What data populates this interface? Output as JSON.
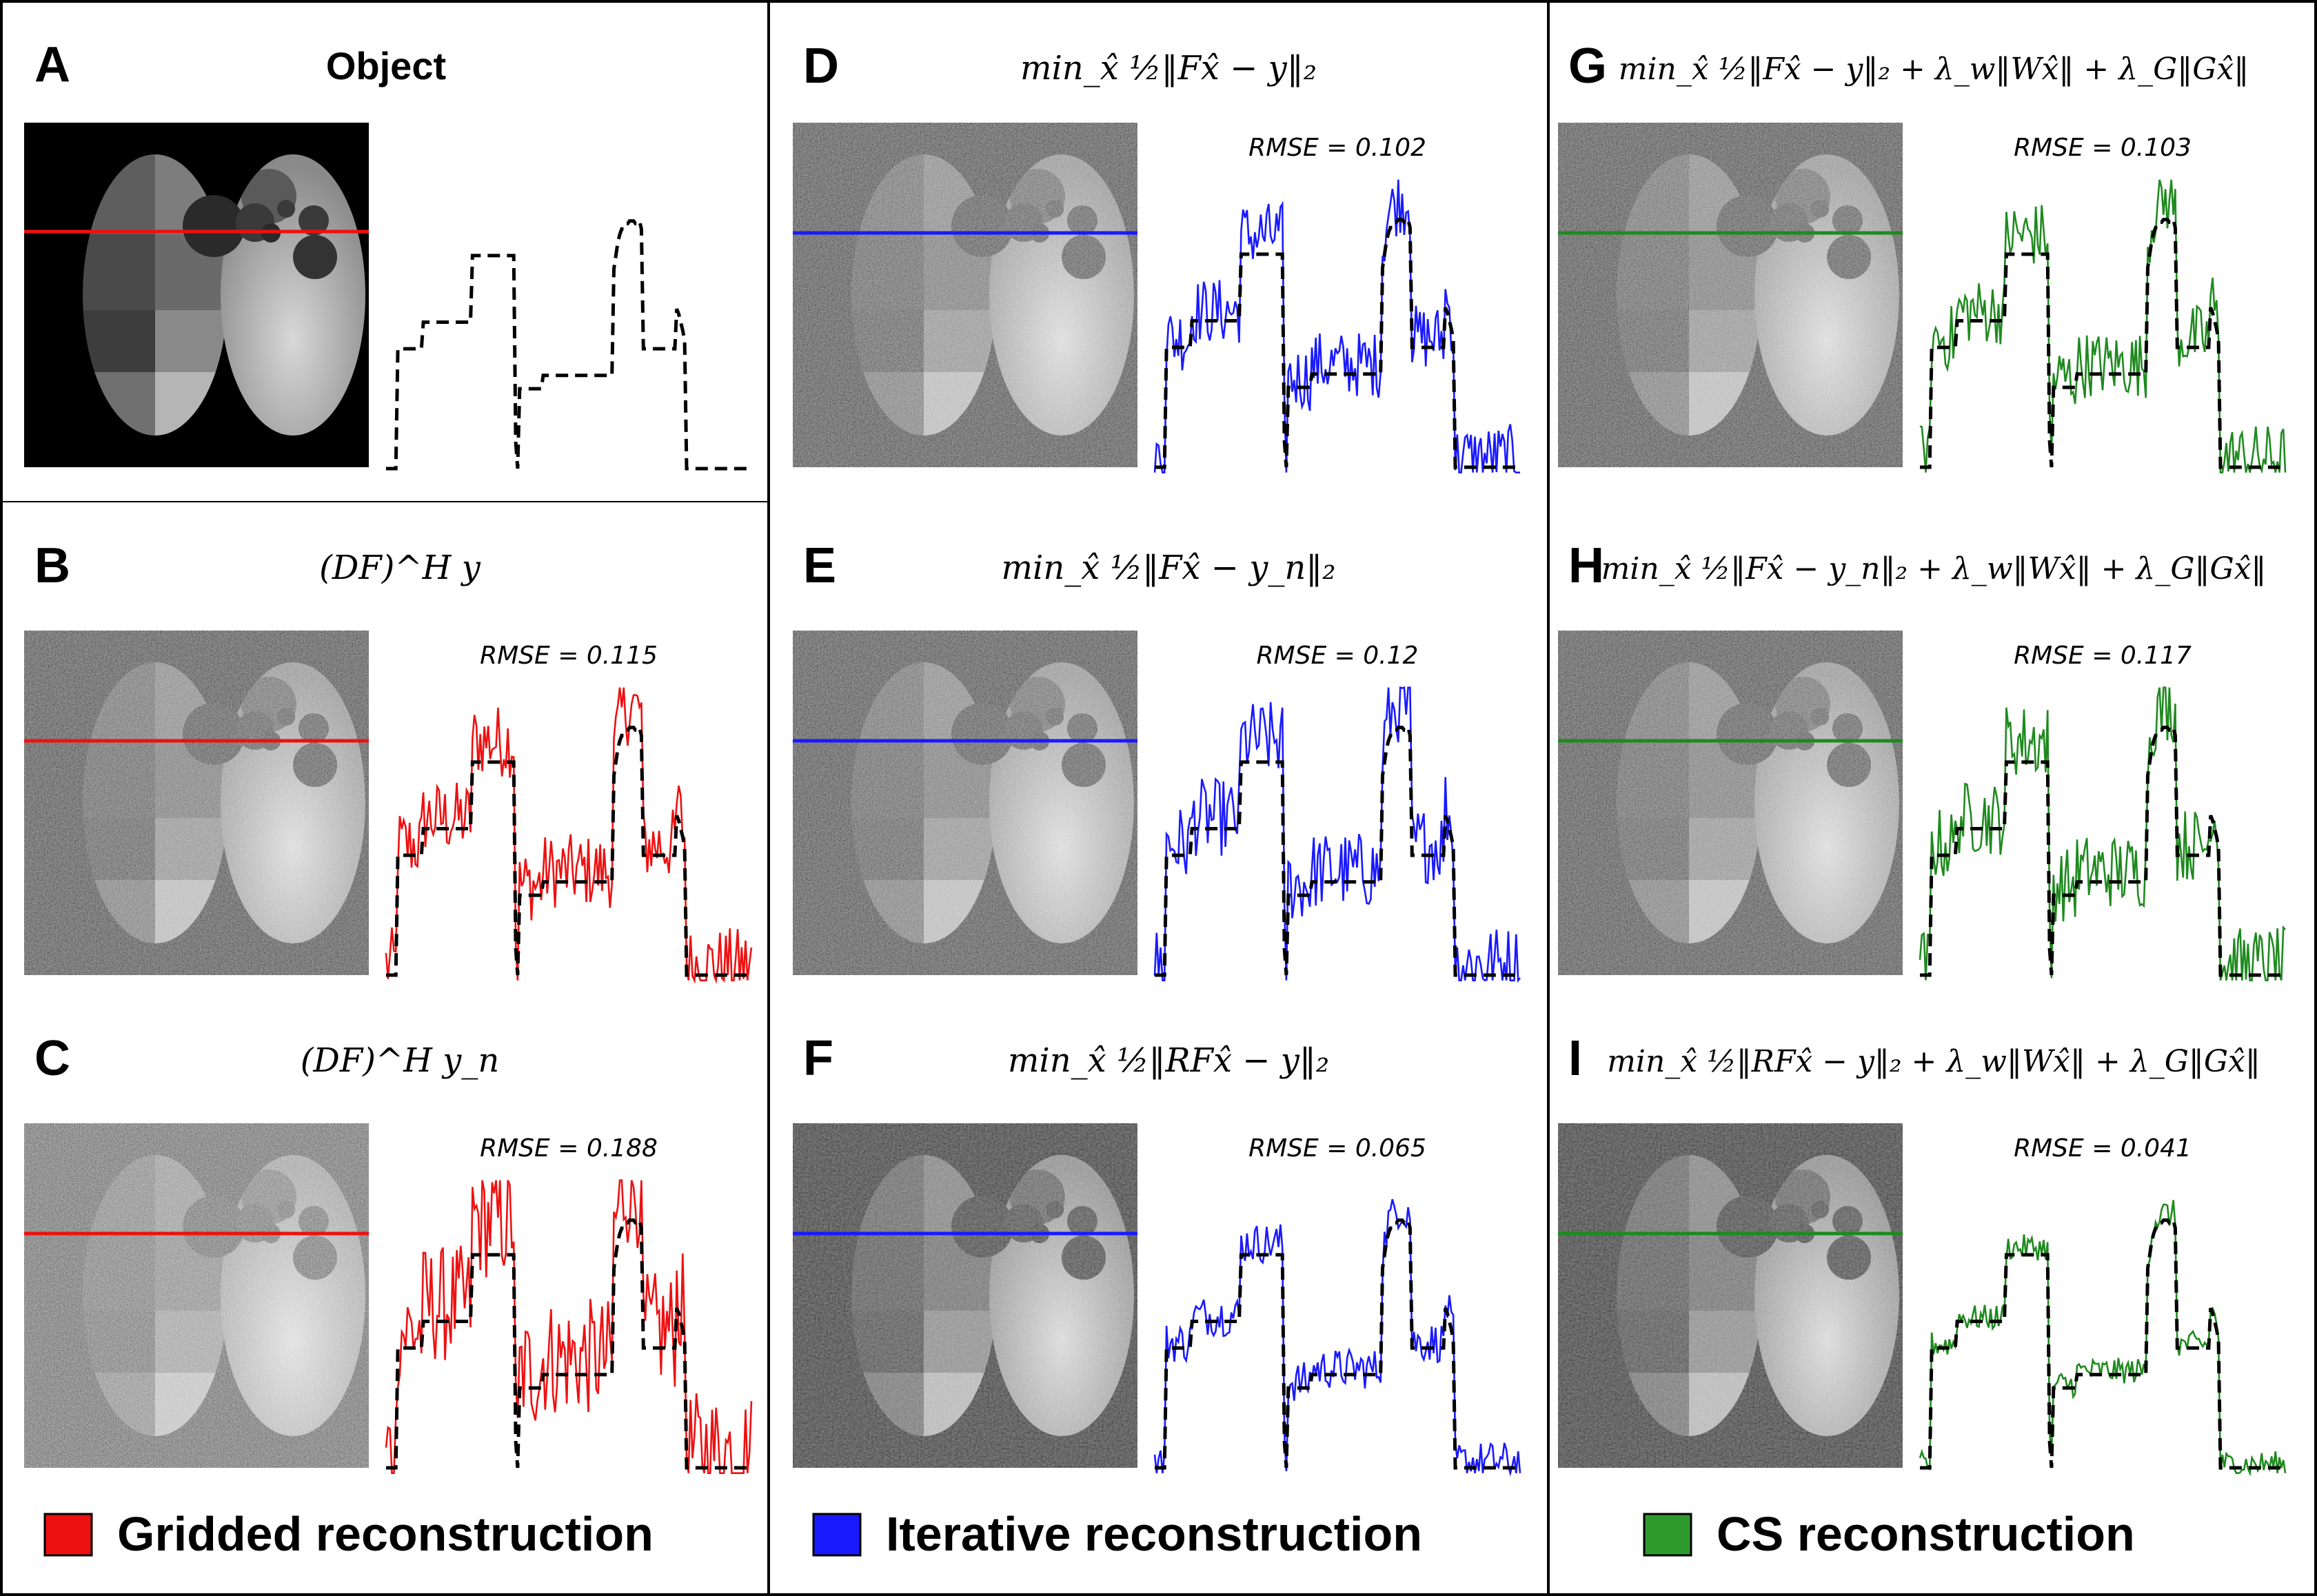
{
  "object_panel": {
    "label": "A",
    "title": "Object"
  },
  "panels": [
    {
      "label": "B",
      "title": "(DF)^H y",
      "rmse": "RMSE = 0.115",
      "method": "gridded",
      "noise": 1.0
    },
    {
      "label": "C",
      "title": "(DF)^H y_n",
      "rmse": "RMSE = 0.188",
      "method": "gridded",
      "noise": 1.6
    },
    {
      "label": "D",
      "title": "min_x̂ ½‖Fx̂ − y‖₂",
      "rmse": "RMSE = 0.102",
      "method": "iterative",
      "noise": 0.9
    },
    {
      "label": "E",
      "title": "min_x̂ ½‖Fx̂ − y_n‖₂",
      "rmse": "RMSE = 0.12",
      "method": "iterative",
      "noise": 1.05
    },
    {
      "label": "F",
      "title": "min_x̂ ½‖RFx̂ − y‖₂",
      "rmse": "RMSE = 0.065",
      "method": "iterative",
      "noise": 0.55
    },
    {
      "label": "G",
      "title": "min_x̂ ½‖Fx̂ − y‖₂ + λ_w‖Wx̂‖ + λ_G‖Gx̂‖",
      "rmse": "RMSE = 0.103",
      "method": "cs",
      "noise": 0.9
    },
    {
      "label": "H",
      "title": "min_x̂ ½‖Fx̂ − y_n‖₂ + λ_w‖Wx̂‖ + λ_G‖Gx̂‖",
      "rmse": "RMSE = 0.117",
      "method": "cs",
      "noise": 1.0
    },
    {
      "label": "I",
      "title": "min_x̂ ½‖RFx̂ − y‖₂ + λ_w‖Wx̂‖ + λ_G‖Gx̂‖",
      "rmse": "RMSE = 0.041",
      "method": "cs",
      "noise": 0.35
    }
  ],
  "legend": [
    {
      "label": "Gridded reconstruction",
      "color": "#ee1111"
    },
    {
      "label": "Iterative reconstruction",
      "color": "#1a1aff"
    },
    {
      "label": "CS reconstruction",
      "color": "#2e9a2e"
    }
  ],
  "colors": {
    "gridded": "#ee1111",
    "iterative": "#1a1aff",
    "cs": "#1f8a1f",
    "reference": "#000000"
  },
  "reference_profile": [
    0.0,
    0.0,
    0.0,
    0.0,
    0.0,
    0.0,
    0.45,
    0.45,
    0.45,
    0.45,
    0.45,
    0.45,
    0.45,
    0.45,
    0.45,
    0.45,
    0.45,
    0.45,
    0.45,
    0.55,
    0.55,
    0.55,
    0.55,
    0.55,
    0.55,
    0.55,
    0.55,
    0.55,
    0.55,
    0.55,
    0.55,
    0.55,
    0.55,
    0.55,
    0.55,
    0.55,
    0.55,
    0.55,
    0.55,
    0.55,
    0.55,
    0.55,
    0.55,
    0.55,
    0.8,
    0.8,
    0.8,
    0.8,
    0.8,
    0.8,
    0.8,
    0.8,
    0.8,
    0.8,
    0.8,
    0.8,
    0.8,
    0.8,
    0.8,
    0.8,
    0.8,
    0.8,
    0.8,
    0.8,
    0.8,
    0.8,
    0.1,
    0.0,
    0.3,
    0.3,
    0.3,
    0.3,
    0.3,
    0.3,
    0.3,
    0.3,
    0.3,
    0.3,
    0.3,
    0.3,
    0.35,
    0.35,
    0.35,
    0.35,
    0.35,
    0.35,
    0.35,
    0.35,
    0.35,
    0.35,
    0.35,
    0.35,
    0.35,
    0.35,
    0.35,
    0.35,
    0.35,
    0.35,
    0.35,
    0.35,
    0.35,
    0.35,
    0.35,
    0.35,
    0.35,
    0.35,
    0.35,
    0.35,
    0.35,
    0.35,
    0.35,
    0.35,
    0.35,
    0.35,
    0.35,
    0.35,
    0.75,
    0.8,
    0.85,
    0.88,
    0.9,
    0.9,
    0.92,
    0.92,
    0.93,
    0.93,
    0.93,
    0.92,
    0.92,
    0.93,
    0.9,
    0.45,
    0.45,
    0.45,
    0.45,
    0.45,
    0.45,
    0.45,
    0.45,
    0.45,
    0.45,
    0.45,
    0.45,
    0.45,
    0.45,
    0.45,
    0.45,
    0.45,
    0.6,
    0.58,
    0.55,
    0.52,
    0.48,
    0.0,
    0.0,
    0.0,
    0.0,
    0.0,
    0.0,
    0.0,
    0.0,
    0.0,
    0.0,
    0.0,
    0.0,
    0.0,
    0.0,
    0.0,
    0.0,
    0.0,
    0.0,
    0.0,
    0.0,
    0.0,
    0.0,
    0.0,
    0.0,
    0.0,
    0.0,
    0.0,
    0.0,
    0.0,
    0.0,
    0.0,
    0.0,
    0.0,
    0.0
  ]
}
